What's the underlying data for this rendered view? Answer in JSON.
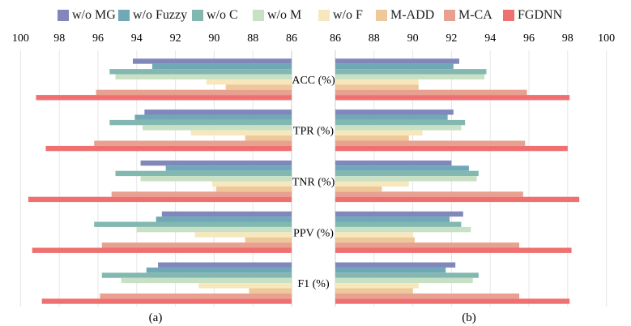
{
  "chart_data": {
    "type": "bar",
    "orientation": "horizontal",
    "title": "",
    "categories": [
      "ACC (%)",
      "TPR (%)",
      "TNR (%)",
      "PPV (%)",
      "F1 (%)"
    ],
    "legend": [
      "w/o MG",
      "w/o Fuzzy",
      "w/o C",
      "w/o M",
      "w/o F",
      "M-ADD",
      "M-CA",
      "FGDNN"
    ],
    "legend_position": "top",
    "colors": [
      "#8088bb",
      "#70a8b8",
      "#82b8b0",
      "#c8e0c4",
      "#f6e8bc",
      "#eec89a",
      "#e8a090",
      "#ef7070"
    ],
    "grid": true,
    "panels": [
      {
        "label": "(a)",
        "direction": "right-to-left",
        "xlim": [
          86,
          100
        ],
        "xticks": [
          100,
          98,
          96,
          94,
          92,
          90,
          88,
          86
        ],
        "series": [
          {
            "name": "w/o MG",
            "values": [
              94.2,
              93.6,
              93.8,
              92.7,
              92.9
            ]
          },
          {
            "name": "w/o Fuzzy",
            "values": [
              93.2,
              94.1,
              92.5,
              93.0,
              93.5
            ]
          },
          {
            "name": "w/o C",
            "values": [
              95.4,
              95.4,
              95.1,
              96.2,
              95.8
            ]
          },
          {
            "name": "w/o M",
            "values": [
              95.1,
              93.7,
              93.8,
              94.0,
              94.8
            ]
          },
          {
            "name": "w/o F",
            "values": [
              90.4,
              91.2,
              90.1,
              91.0,
              90.8
            ]
          },
          {
            "name": "M-ADD",
            "values": [
              89.4,
              88.4,
              89.9,
              88.4,
              88.2
            ]
          },
          {
            "name": "M-CA",
            "values": [
              96.1,
              96.2,
              95.3,
              95.8,
              95.9
            ]
          },
          {
            "name": "FGDNN",
            "values": [
              99.2,
              98.7,
              99.6,
              99.4,
              98.9
            ]
          }
        ]
      },
      {
        "label": "(b)",
        "direction": "left-to-right",
        "xlim": [
          86,
          100
        ],
        "xticks": [
          86,
          88,
          90,
          92,
          94,
          96,
          98,
          100
        ],
        "series": [
          {
            "name": "w/o MG",
            "values": [
              92.4,
              92.1,
              92.0,
              92.6,
              92.2
            ]
          },
          {
            "name": "w/o Fuzzy",
            "values": [
              92.1,
              91.8,
              92.9,
              91.9,
              91.7
            ]
          },
          {
            "name": "w/o C",
            "values": [
              93.8,
              92.7,
              93.4,
              92.5,
              93.4
            ]
          },
          {
            "name": "w/o M",
            "values": [
              93.7,
              92.5,
              93.3,
              93.0,
              93.1
            ]
          },
          {
            "name": "w/o F",
            "values": [
              90.3,
              90.5,
              89.8,
              90.0,
              90.3
            ]
          },
          {
            "name": "M-ADD",
            "values": [
              90.3,
              89.8,
              88.4,
              90.1,
              90.0
            ]
          },
          {
            "name": "M-CA",
            "values": [
              95.9,
              95.8,
              95.7,
              95.5,
              95.5
            ]
          },
          {
            "name": "FGDNN",
            "values": [
              98.1,
              98.0,
              98.6,
              98.2,
              98.1
            ]
          }
        ]
      }
    ]
  }
}
